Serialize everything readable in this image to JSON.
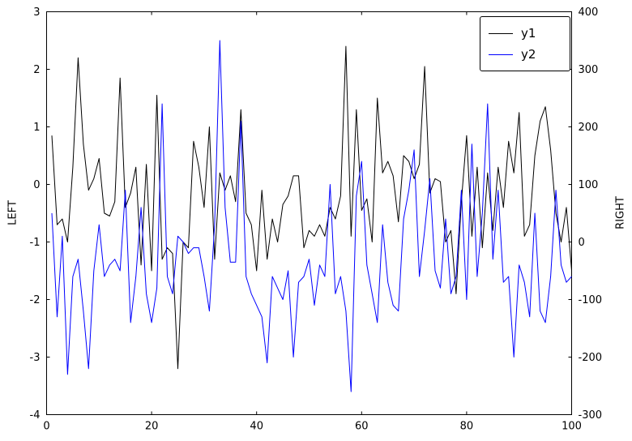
{
  "figure": {
    "background": "#ffffff"
  },
  "axes": {
    "left_label": "LEFT",
    "right_label": "RIGHT",
    "xlim": [
      0,
      100
    ],
    "ylim_left": [
      -4,
      3
    ],
    "ylim_right": [
      -300,
      400
    ],
    "xticks": [
      0,
      20,
      40,
      60,
      80,
      100
    ],
    "yticks_left": [
      -4,
      -3,
      -2,
      -1,
      0,
      1,
      2,
      3
    ],
    "yticks_right": [
      -300,
      -200,
      -100,
      0,
      100,
      200,
      300,
      400
    ],
    "axis_color": "#000000",
    "tick_length": 4
  },
  "legend": {
    "entries": [
      {
        "label": "y1",
        "color": "#000000"
      },
      {
        "label": "y2",
        "color": "#0000ff"
      }
    ]
  },
  "chart_data": {
    "type": "line",
    "title": "",
    "xlabel": "",
    "ylabel_left": "LEFT",
    "ylabel_right": "RIGHT",
    "x_start": 1,
    "x_step": 1,
    "xlim": [
      0,
      100
    ],
    "ylim_left": [
      -4,
      3
    ],
    "ylim_right": [
      -300,
      400
    ],
    "grid": false,
    "legend_position": "upper right",
    "series": [
      {
        "name": "y1",
        "axis": "left",
        "color": "#000000",
        "values": [
          0.85,
          -0.7,
          -0.6,
          -1.0,
          0.3,
          2.2,
          0.7,
          -0.1,
          0.1,
          0.45,
          -0.5,
          -0.55,
          -0.3,
          1.85,
          -0.4,
          -0.15,
          0.3,
          -1.4,
          0.35,
          -1.5,
          1.55,
          -1.3,
          -1.1,
          -1.2,
          -3.2,
          -1.0,
          -1.1,
          0.75,
          0.3,
          -0.4,
          1.0,
          -1.3,
          0.2,
          -0.1,
          0.15,
          -0.3,
          1.3,
          -0.5,
          -0.7,
          -1.5,
          -0.1,
          -1.3,
          -0.6,
          -1.0,
          -0.35,
          -0.2,
          0.15,
          0.15,
          -1.1,
          -0.8,
          -0.9,
          -0.7,
          -0.9,
          -0.4,
          -0.6,
          -0.2,
          2.4,
          -0.9,
          1.3,
          -0.45,
          -0.25,
          -1.0,
          1.5,
          0.2,
          0.4,
          0.15,
          -0.65,
          0.5,
          0.4,
          0.1,
          0.35,
          2.05,
          -0.15,
          0.1,
          0.05,
          -1.0,
          -0.8,
          -1.9,
          -0.3,
          0.85,
          -0.9,
          0.3,
          -1.1,
          0.2,
          -0.8,
          0.3,
          -0.4,
          0.75,
          0.2,
          1.25,
          -0.9,
          -0.7,
          0.5,
          1.1,
          1.35,
          0.6,
          -0.5,
          -1.0,
          -0.4,
          -1.5
        ]
      },
      {
        "name": "y2",
        "axis": "right",
        "color": "#0000ff",
        "values": [
          50,
          -130,
          10,
          -230,
          -60,
          -30,
          -120,
          -220,
          -50,
          30,
          -60,
          -40,
          -30,
          -50,
          90,
          -140,
          -60,
          60,
          -90,
          -140,
          -80,
          240,
          -60,
          -90,
          10,
          0,
          -20,
          -10,
          -10,
          -60,
          -120,
          30,
          350,
          60,
          -35,
          -35,
          210,
          -60,
          -90,
          -110,
          -130,
          -210,
          -60,
          -80,
          -100,
          -50,
          -200,
          -70,
          -60,
          -30,
          -110,
          -40,
          -60,
          100,
          -90,
          -60,
          -120,
          -260,
          80,
          140,
          -40,
          -90,
          -140,
          30,
          -70,
          -110,
          -120,
          40,
          90,
          160,
          -60,
          20,
          110,
          -50,
          -80,
          40,
          -90,
          -60,
          90,
          -100,
          170,
          -60,
          50,
          240,
          -30,
          90,
          -70,
          -60,
          -200,
          -40,
          -70,
          -130,
          50,
          -120,
          -140,
          -60,
          90,
          -40,
          -70,
          -60
        ]
      }
    ]
  }
}
